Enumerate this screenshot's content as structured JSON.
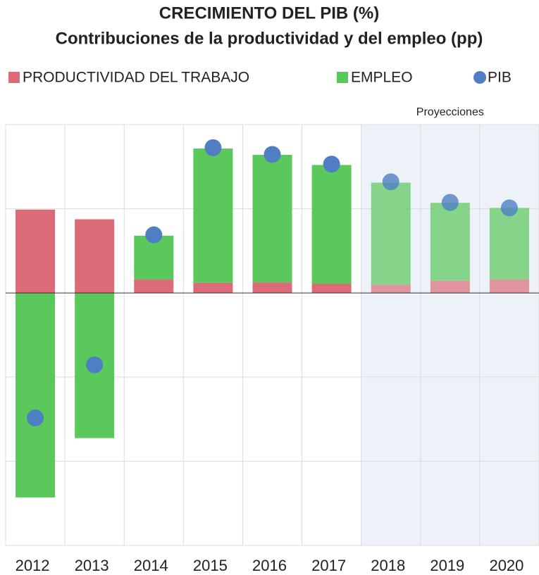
{
  "chart_data": {
    "type": "bar",
    "stacked": true,
    "title": "CRECIMIENTO DEL PIB (%)",
    "subtitle": "Contribuciones de la productividad y del empleo (pp)",
    "categories": [
      "2012",
      "2013",
      "2014",
      "2015",
      "2016",
      "2017",
      "2018",
      "2019",
      "2020"
    ],
    "series": [
      {
        "name": "PRODUCTIVIDAD DEL TRABAJO",
        "color": "#db6b77",
        "kind": "bar",
        "values": [
          1.98,
          1.75,
          0.32,
          0.24,
          0.25,
          0.22,
          0.2,
          0.29,
          0.32
        ]
      },
      {
        "name": "EMPLEO",
        "color": "#5ac85a",
        "kind": "bar",
        "values": [
          -4.86,
          -3.45,
          1.04,
          3.19,
          3.03,
          2.82,
          2.42,
          1.85,
          1.7
        ]
      },
      {
        "name": "PIB",
        "color": "#4f7fc2",
        "kind": "dot",
        "values": [
          -2.97,
          -1.71,
          1.38,
          3.45,
          3.29,
          3.06,
          2.64,
          2.15,
          2.02
        ]
      }
    ],
    "annotation": {
      "text": "Proyecciones",
      "from": "2018"
    },
    "ylim": [
      -6,
      4
    ],
    "yticks": [
      -6,
      -4,
      -2,
      0,
      2,
      4
    ],
    "grid": true
  }
}
